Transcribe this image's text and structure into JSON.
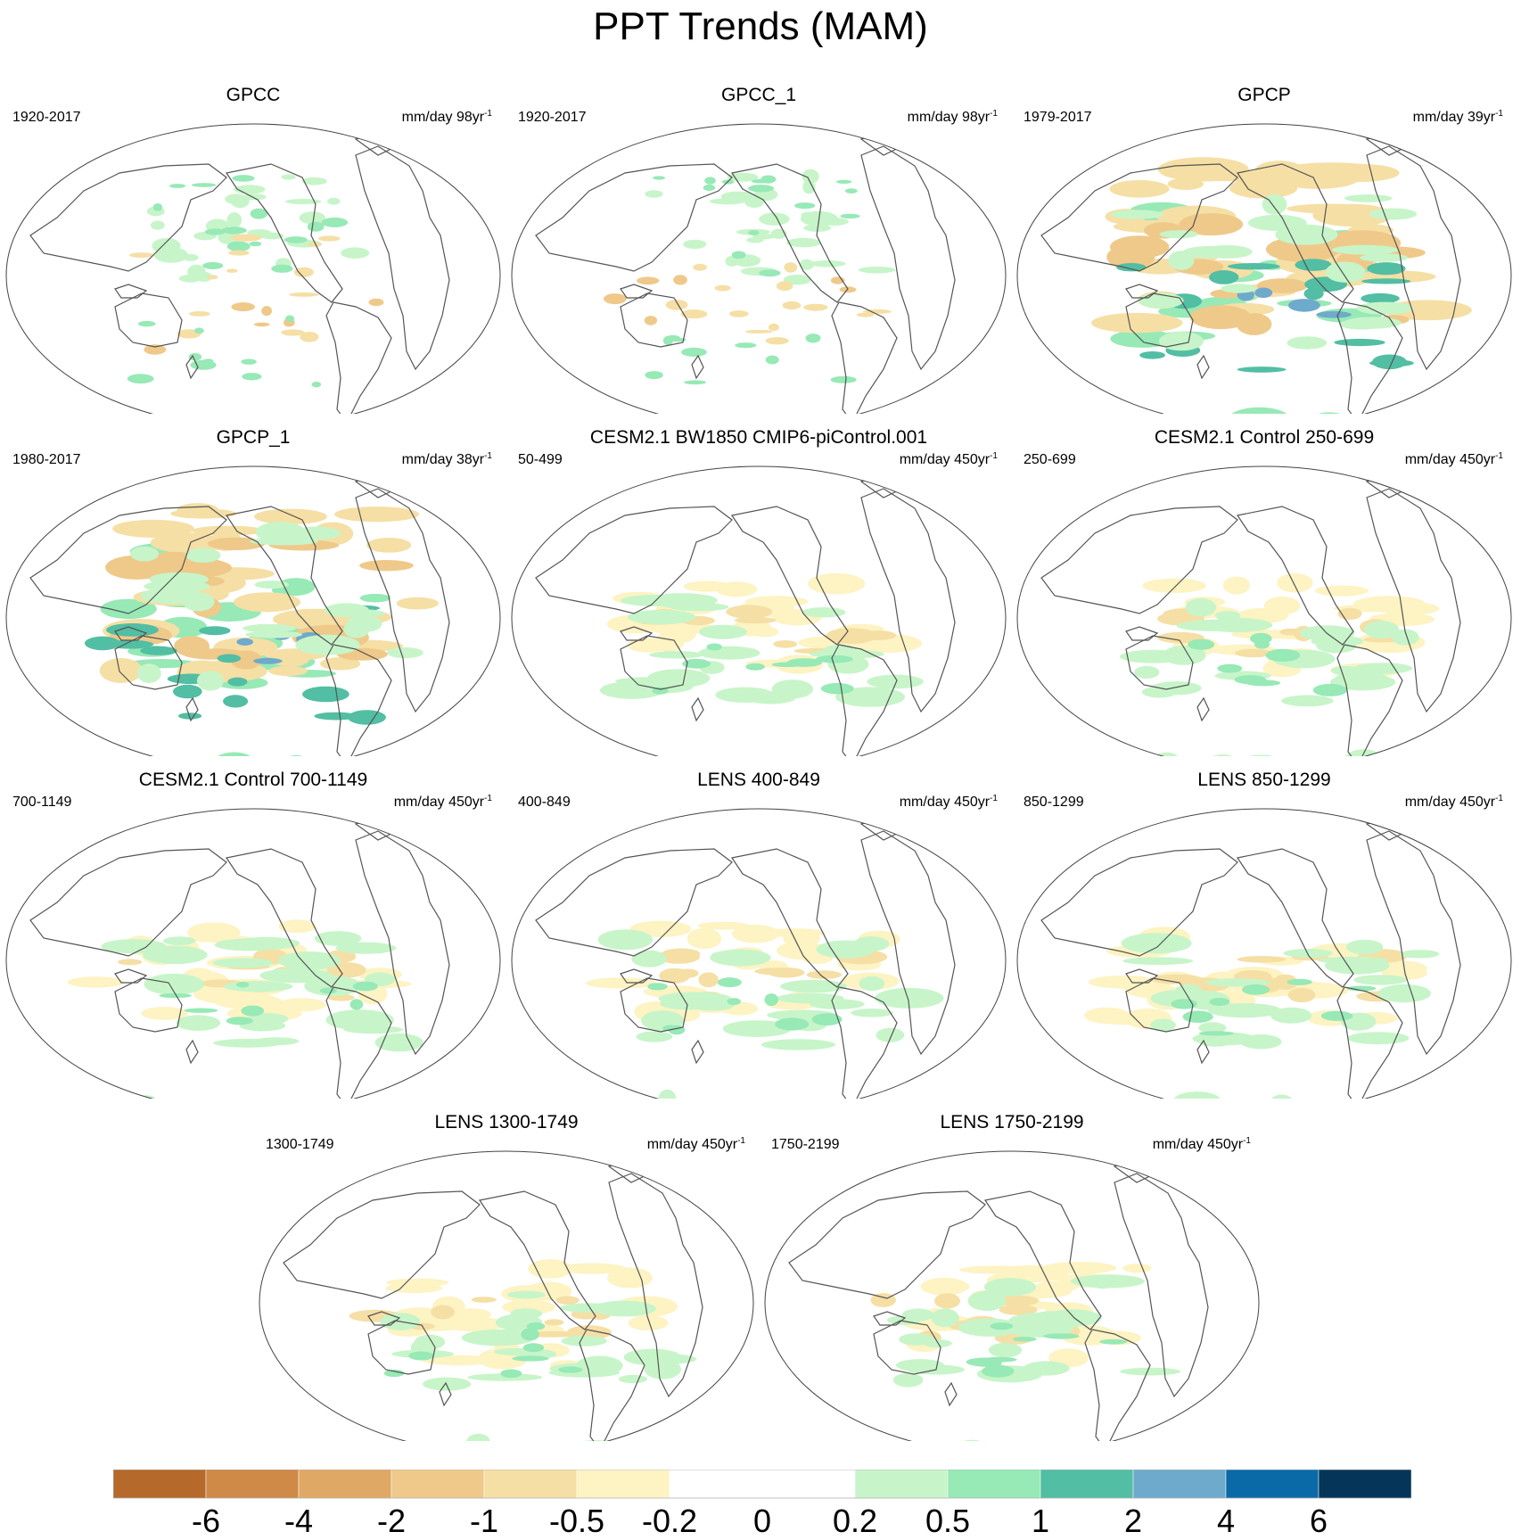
{
  "title": "PPT Trends (MAM)",
  "chart_data": [
    {
      "type": "heatmap",
      "title": "GPCC",
      "period": "1920-2017",
      "units": "mm/day 98yr",
      "units_exp": "-1",
      "pattern": "obs_land"
    },
    {
      "type": "heatmap",
      "title": "GPCC_1",
      "period": "1920-2017",
      "units": "mm/day 98yr",
      "units_exp": "-1",
      "pattern": "obs_land"
    },
    {
      "type": "heatmap",
      "title": "GPCP",
      "period": "1979-2017",
      "units": "mm/day 39yr",
      "units_exp": "-1",
      "pattern": "obs_full"
    },
    {
      "type": "heatmap",
      "title": "GPCP_1",
      "period": "1980-2017",
      "units": "mm/day 38yr",
      "units_exp": "-1",
      "pattern": "obs_full"
    },
    {
      "type": "heatmap",
      "title": "CESM2.1 BW1850 CMIP6-piControl.001",
      "period": "50-499",
      "units": "mm/day 450yr",
      "units_exp": "-1",
      "pattern": "model"
    },
    {
      "type": "heatmap",
      "title": "CESM2.1 Control 250-699",
      "period": "250-699",
      "units": "mm/day 450yr",
      "units_exp": "-1",
      "pattern": "model"
    },
    {
      "type": "heatmap",
      "title": "CESM2.1 Control 700-1149",
      "period": "700-1149",
      "units": "mm/day 450yr",
      "units_exp": "-1",
      "pattern": "model"
    },
    {
      "type": "heatmap",
      "title": "LENS 400-849",
      "period": "400-849",
      "units": "mm/day 450yr",
      "units_exp": "-1",
      "pattern": "model"
    },
    {
      "type": "heatmap",
      "title": "LENS 850-1299",
      "period": "850-1299",
      "units": "mm/day 450yr",
      "units_exp": "-1",
      "pattern": "model"
    },
    {
      "type": "heatmap",
      "title": "LENS 1300-1749",
      "period": "1300-1749",
      "units": "mm/day 450yr",
      "units_exp": "-1",
      "pattern": "model"
    },
    {
      "type": "heatmap",
      "title": "LENS 1750-2199",
      "period": "1750-2199",
      "units": "mm/day 450yr",
      "units_exp": "-1",
      "pattern": "model"
    }
  ],
  "colorbar": {
    "labels": [
      "-6",
      "-4",
      "-2",
      "-1",
      "-0.5",
      "-0.2",
      "0",
      "0.2",
      "0.5",
      "1",
      "2",
      "4",
      "6"
    ],
    "colors": [
      "#b5692b",
      "#cf8a47",
      "#e0a865",
      "#efc98a",
      "#f5dfa5",
      "#fdf3c3",
      "#ffffff",
      "#ffffff",
      "#c7f5c9",
      "#97e9b6",
      "#52bea3",
      "#6eaacb",
      "#0a6aa8",
      "#053659"
    ]
  }
}
